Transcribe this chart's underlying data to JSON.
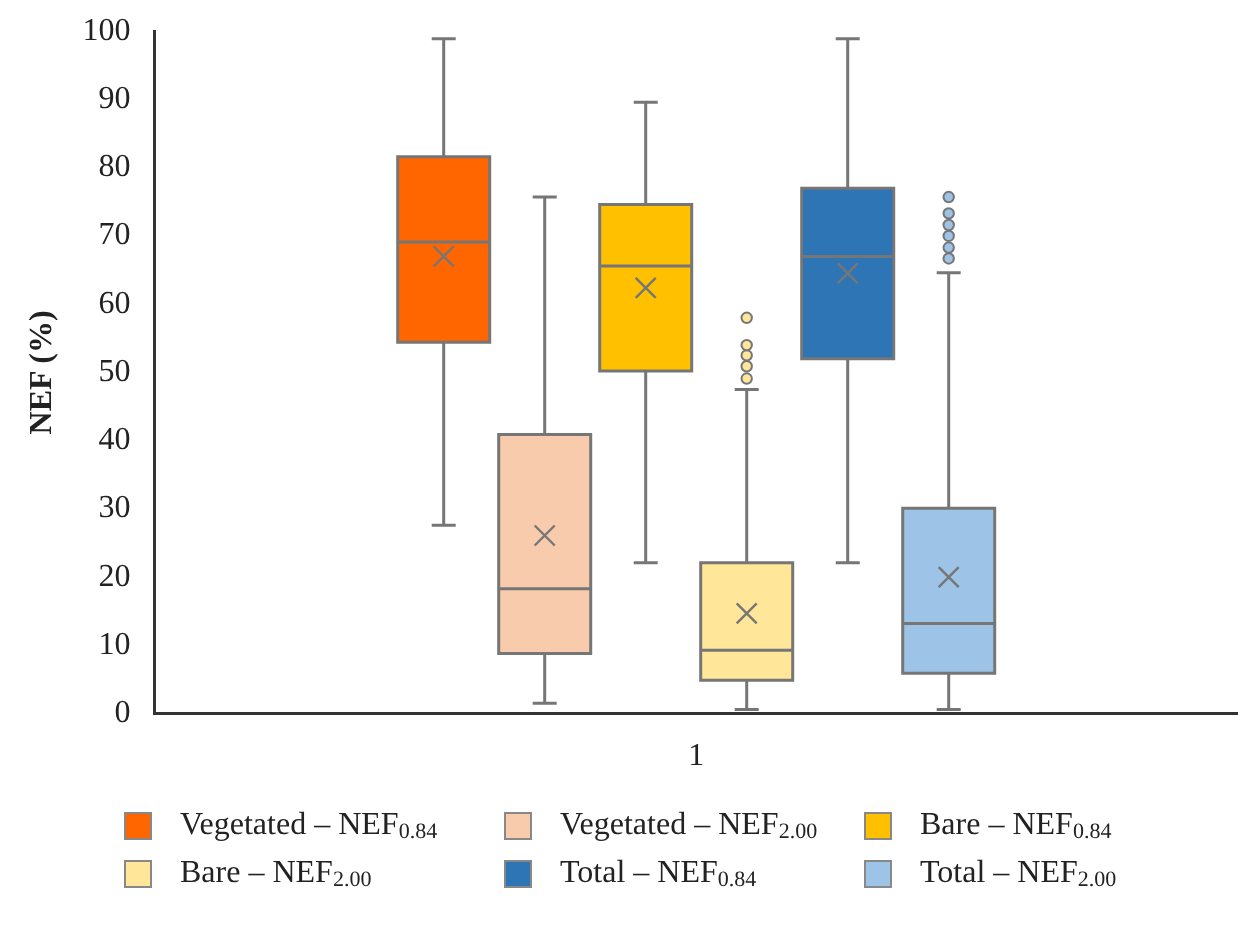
{
  "chart_data": {
    "type": "box",
    "ylabel": "NEF (%)",
    "categories": [
      "1"
    ],
    "ylim": [
      0,
      100
    ],
    "yticks": [
      0,
      10,
      20,
      30,
      40,
      50,
      60,
      70,
      80,
      90,
      100
    ],
    "grid": false,
    "legend": "bottom",
    "series": [
      {
        "name": "Vegetated – NEF$_{0.84}$",
        "color": "#ff6600",
        "boxes": [
          {
            "low": 27.6,
            "q1": 54.4,
            "median": 69.1,
            "q3": 81.6,
            "high": 98.9,
            "mean": 67
          }
        ]
      },
      {
        "name": "Vegetated – NEF$_{2.00}$",
        "color": "#f8cbad",
        "boxes": [
          {
            "low": 1.5,
            "q1": 8.8,
            "median": 18.3,
            "q3": 40.9,
            "high": 75.7,
            "mean": 26.1
          }
        ]
      },
      {
        "name": "Bare – NEF$_{0.84}$",
        "color": "#ffc000",
        "boxes": [
          {
            "low": 22.1,
            "q1": 50.2,
            "median": 65.6,
            "q3": 74.6,
            "high": 89.6,
            "mean": 62.4
          }
        ]
      },
      {
        "name": "Bare – NEF$_{2.00}$",
        "color": "#ffe699",
        "boxes": [
          {
            "low": 0.6,
            "q1": 4.9,
            "median": 9.3,
            "q3": 22.1,
            "high": 47.5,
            "mean": 14.7,
            "outliers": [
              49.1,
              50.9,
              52.5,
              54,
              58
            ]
          }
        ]
      },
      {
        "name": "Total – NEF$_{0.84}$",
        "color": "#2e75b6",
        "boxes": [
          {
            "low": 22.1,
            "q1": 52,
            "median": 67,
            "q3": 77,
            "high": 98.9,
            "mean": 64.5
          }
        ]
      },
      {
        "name": "Total – NEF$_{2.00}$",
        "color": "#9dc3e6",
        "boxes": [
          {
            "low": 0.6,
            "q1": 5.9,
            "median": 13.2,
            "q3": 30.1,
            "high": 64.6,
            "mean": 20,
            "outliers": [
              66.7,
              68.3,
              70,
              71.6,
              73.3,
              75.7
            ]
          }
        ]
      }
    ]
  }
}
